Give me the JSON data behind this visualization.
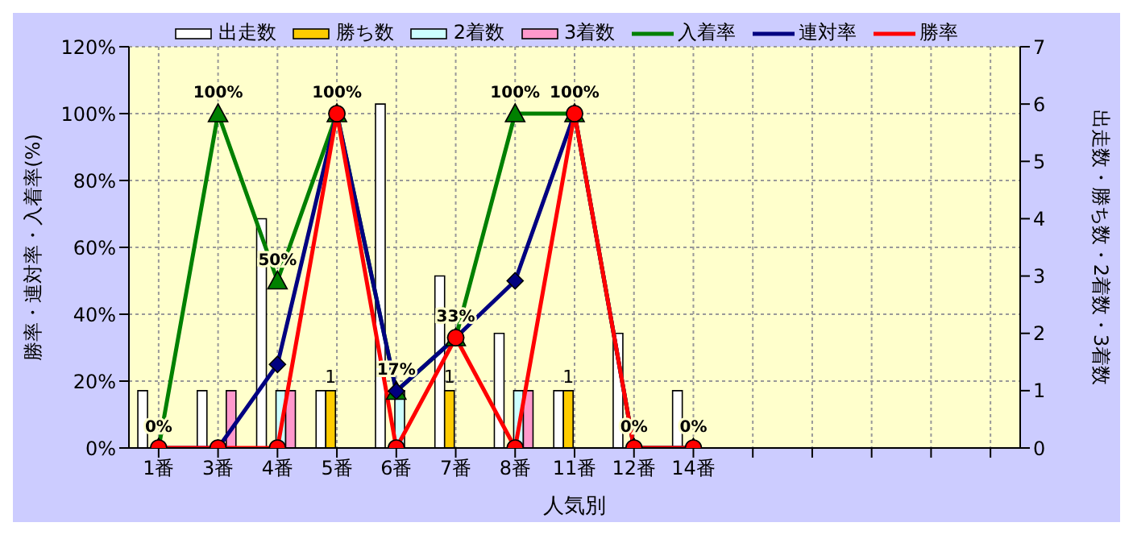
{
  "chart_data": {
    "type": "bar",
    "xlabel": "人気別",
    "ylabel": "勝率・連対率・入着率(%)",
    "y2label": "出走数・勝ち数・2着数・3着数",
    "categories": [
      "1番",
      "3番",
      "4番",
      "5番",
      "6番",
      "7番",
      "8番",
      "11番",
      "12番",
      "14番",
      null,
      null,
      null,
      null,
      null
    ],
    "series": [
      {
        "name": "出走数",
        "axis": "y2",
        "color": "#ffffff",
        "values": [
          1,
          1,
          4,
          1,
          6,
          3,
          2,
          1,
          2,
          1,
          null,
          null,
          null,
          null,
          null
        ]
      },
      {
        "name": "勝ち数",
        "axis": "y2",
        "color": "#ffcc00",
        "values": [
          0,
          0,
          0,
          1,
          0,
          1,
          0,
          1,
          0,
          0,
          null,
          null,
          null,
          null,
          null
        ],
        "value_labels": [
          null,
          null,
          null,
          "1",
          null,
          "1",
          null,
          "1",
          null,
          null,
          null,
          null,
          null,
          null,
          null
        ]
      },
      {
        "name": "2着数",
        "axis": "y2",
        "color": "#ccffff",
        "values": [
          0,
          0,
          1,
          0,
          1,
          0,
          1,
          0,
          0,
          0,
          null,
          null,
          null,
          null,
          null
        ]
      },
      {
        "name": "3着数",
        "axis": "y2",
        "color": "#ff99cc",
        "values": [
          0,
          1,
          1,
          0,
          0,
          0,
          1,
          0,
          0,
          0,
          null,
          null,
          null,
          null,
          null
        ]
      },
      {
        "name": "入着率",
        "type": "line",
        "marker": "triangle",
        "color": "#008000",
        "values": [
          0,
          100,
          50,
          100,
          17,
          33,
          100,
          100,
          0,
          0,
          null,
          null,
          null,
          null,
          null
        ],
        "value_labels": [
          "0%",
          "100%",
          "50%",
          "100%",
          "17%",
          "33%",
          "100%",
          "100%",
          "0%",
          "0%",
          null,
          null,
          null,
          null,
          null
        ]
      },
      {
        "name": "連対率",
        "type": "line",
        "marker": "diamond",
        "color": "#000080",
        "values": [
          0,
          0,
          25,
          100,
          17,
          33,
          50,
          100,
          0,
          0,
          null,
          null,
          null,
          null,
          null
        ]
      },
      {
        "name": "勝率",
        "type": "line",
        "marker": "circle",
        "color": "#ff0000",
        "values": [
          0,
          0,
          0,
          100,
          0,
          33,
          0,
          100,
          0,
          0,
          null,
          null,
          null,
          null,
          null
        ]
      }
    ],
    "ylim": [
      0,
      120
    ],
    "yticks": [
      {
        "value": 0,
        "label": "0%"
      },
      {
        "value": 20,
        "label": "20%"
      },
      {
        "value": 40,
        "label": "40%"
      },
      {
        "value": 60,
        "label": "60%"
      },
      {
        "value": 80,
        "label": "80%"
      },
      {
        "value": 100,
        "label": "100%"
      },
      {
        "value": 120,
        "label": "120%"
      }
    ],
    "y2lim": [
      0,
      7
    ],
    "y2ticks": [
      0,
      1,
      2,
      3,
      4,
      5,
      6,
      7
    ],
    "grid": true,
    "legend": "top"
  }
}
